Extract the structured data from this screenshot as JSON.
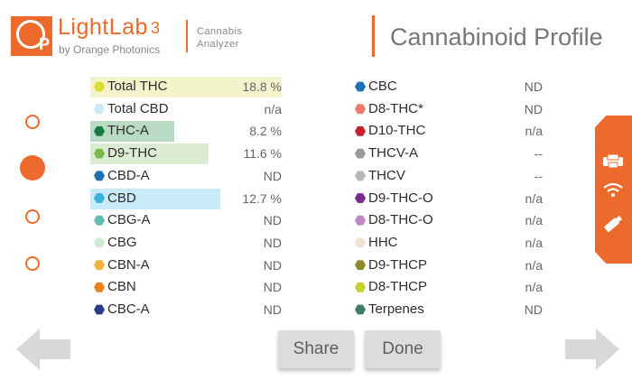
{
  "header": {
    "logo_text": "OP",
    "brand": "LightLab",
    "brand_sup": "3",
    "brand_sub": "by Orange Photonics",
    "product_line1": "Cannabis",
    "product_line2": "Analyzer",
    "page_title": "Cannabinoid Profile"
  },
  "colors": {
    "accent": "#ec6a2c",
    "button_bg": "#dcdcdc"
  },
  "pager": {
    "count": 4,
    "active_index": 1
  },
  "left_column": [
    {
      "name": "Total THC",
      "value": "18.8 %",
      "hex": "#d9dd2e",
      "highlight": "#f3f4cc",
      "level": 1.0
    },
    {
      "name": "Total CBD",
      "value": "n/a",
      "hex": "#cfe8f6",
      "highlight": null
    },
    {
      "name": "THC-A",
      "value": "8.2 %",
      "hex": "#177a42",
      "highlight": "#b9dbc4",
      "level": 0.44
    },
    {
      "name": "D9-THC",
      "value": "11.6 %",
      "hex": "#7ab94d",
      "highlight": "#dbecd3",
      "level": 0.62
    },
    {
      "name": "CBD-A",
      "value": "ND",
      "hex": "#2070b6",
      "highlight": null
    },
    {
      "name": "CBD",
      "value": "12.7 %",
      "hex": "#3ab2e1",
      "highlight": "#c9eaf7",
      "level": 0.68
    },
    {
      "name": "CBG-A",
      "value": "ND",
      "hex": "#5fbcb0",
      "highlight": null
    },
    {
      "name": "CBG",
      "value": "ND",
      "hex": "#cfe8cf",
      "highlight": null
    },
    {
      "name": "CBN-A",
      "value": "ND",
      "hex": "#f5b23a",
      "highlight": null
    },
    {
      "name": "CBN",
      "value": "ND",
      "hex": "#ec8321",
      "highlight": null
    },
    {
      "name": "CBC-A",
      "value": "ND",
      "hex": "#2b3a8c",
      "highlight": null
    }
  ],
  "right_column": [
    {
      "name": "CBC",
      "value": "ND",
      "hex": "#1f72b8"
    },
    {
      "name": "D8-THC*",
      "value": "ND",
      "hex": "#ef7a6a"
    },
    {
      "name": "D10-THC",
      "value": "n/a",
      "hex": "#c8202d"
    },
    {
      "name": "THCV-A",
      "value": "--",
      "hex": "#9a9a9a"
    },
    {
      "name": "THCV",
      "value": "--",
      "hex": "#b9b9b9"
    },
    {
      "name": "D9-THC-O",
      "value": "n/a",
      "hex": "#7a2a8f"
    },
    {
      "name": "D8-THC-O",
      "value": "n/a",
      "hex": "#c387c9"
    },
    {
      "name": "HHC",
      "value": "n/a",
      "hex": "#ece4d2"
    },
    {
      "name": "D9-THCP",
      "value": "n/a",
      "hex": "#8f8a2a"
    },
    {
      "name": "D8-THCP",
      "value": "n/a",
      "hex": "#c8cf32"
    },
    {
      "name": "Terpenes",
      "value": "ND",
      "hex": "#3f7d68"
    }
  ],
  "side_panel": {
    "icons": [
      "printer-icon",
      "wifi-icon",
      "usb-icon"
    ]
  },
  "footer": {
    "share_label": "Share",
    "done_label": "Done",
    "back_icon": "arrow-left-icon",
    "forward_icon": "arrow-right-icon"
  }
}
